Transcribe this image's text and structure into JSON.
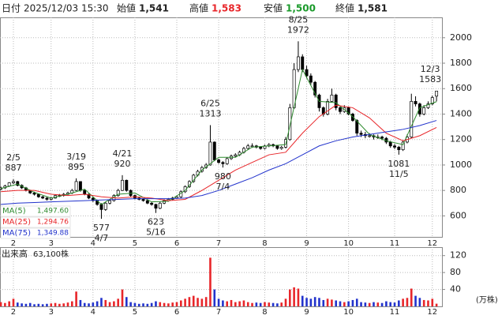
{
  "header": {
    "date_label": "日付",
    "datetime": "2025/12/03 15:30",
    "open_label": "始値",
    "open": "1,541",
    "high_label": "高値",
    "high": "1,583",
    "low_label": "安値",
    "low": "1,500",
    "close_label": "終値",
    "close": "1,581"
  },
  "chart_data": [
    {
      "type": "candlestick",
      "xlim": [
        -0.2,
        105.3
      ],
      "ylim": [
        435,
        2160
      ],
      "yticks": [
        600,
        800,
        1000,
        1200,
        1400,
        1600,
        1800,
        2000
      ],
      "xticks": [
        {
          "value": 3,
          "label": "2"
        },
        {
          "value": 12,
          "label": "3"
        },
        {
          "value": 22,
          "label": "4"
        },
        {
          "value": 32,
          "label": "5"
        },
        {
          "value": 42,
          "label": "6"
        },
        {
          "value": 52,
          "label": "7"
        },
        {
          "value": 63,
          "label": "8"
        },
        {
          "value": 73,
          "label": "9"
        },
        {
          "value": 83,
          "label": "10"
        },
        {
          "value": 94,
          "label": "11"
        },
        {
          "value": 103,
          "label": "12"
        }
      ],
      "grid": true,
      "up_color": "#ffffff",
      "down_color": "#000000",
      "ohlc": [
        [
          810,
          830,
          800,
          820
        ],
        [
          820,
          845,
          812,
          835
        ],
        [
          835,
          865,
          828,
          860
        ],
        [
          860,
          887,
          850,
          870
        ],
        [
          870,
          875,
          832,
          840
        ],
        [
          840,
          848,
          812,
          820
        ],
        [
          820,
          828,
          792,
          800
        ],
        [
          800,
          805,
          772,
          780
        ],
        [
          780,
          790,
          760,
          770
        ],
        [
          770,
          775,
          742,
          750
        ],
        [
          750,
          758,
          732,
          740
        ],
        [
          740,
          748,
          720,
          730
        ],
        [
          730,
          750,
          722,
          740
        ],
        [
          740,
          768,
          735,
          760
        ],
        [
          760,
          772,
          748,
          760
        ],
        [
          760,
          780,
          752,
          770
        ],
        [
          770,
          790,
          762,
          780
        ],
        [
          780,
          812,
          772,
          800
        ],
        [
          800,
          895,
          795,
          870
        ],
        [
          870,
          872,
          790,
          800
        ],
        [
          800,
          808,
          762,
          770
        ],
        [
          770,
          775,
          732,
          740
        ],
        [
          740,
          748,
          710,
          720
        ],
        [
          720,
          728,
          680,
          690
        ],
        [
          690,
          700,
          577,
          650
        ],
        [
          650,
          712,
          640,
          700
        ],
        [
          700,
          730,
          690,
          720
        ],
        [
          720,
          770,
          712,
          760
        ],
        [
          760,
          812,
          750,
          800
        ],
        [
          800,
          920,
          795,
          880
        ],
        [
          880,
          885,
          790,
          800
        ],
        [
          800,
          808,
          750,
          760
        ],
        [
          760,
          768,
          730,
          740
        ],
        [
          740,
          750,
          722,
          730
        ],
        [
          730,
          738,
          712,
          720
        ],
        [
          720,
          728,
          692,
          700
        ],
        [
          700,
          710,
          680,
          690
        ],
        [
          690,
          695,
          623,
          660
        ],
        [
          660,
          710,
          652,
          700
        ],
        [
          700,
          730,
          692,
          720
        ],
        [
          720,
          740,
          712,
          730
        ],
        [
          730,
          750,
          722,
          740
        ],
        [
          740,
          760,
          732,
          750
        ],
        [
          750,
          800,
          742,
          790
        ],
        [
          790,
          840,
          780,
          830
        ],
        [
          830,
          880,
          820,
          870
        ],
        [
          870,
          930,
          860,
          920
        ],
        [
          920,
          962,
          910,
          950
        ],
        [
          950,
          992,
          940,
          980
        ],
        [
          980,
          1015,
          970,
          1000
        ],
        [
          1000,
          1313,
          995,
          1180
        ],
        [
          1180,
          1185,
          1030,
          1040
        ],
        [
          1040,
          1050,
          1010,
          1020
        ],
        [
          1020,
          1030,
          980,
          1010
        ],
        [
          1010,
          1060,
          1002,
          1050
        ],
        [
          1050,
          1082,
          1040,
          1070
        ],
        [
          1070,
          1092,
          1060,
          1080
        ],
        [
          1080,
          1112,
          1070,
          1100
        ],
        [
          1100,
          1142,
          1090,
          1130
        ],
        [
          1130,
          1165,
          1120,
          1150
        ],
        [
          1150,
          1170,
          1135,
          1150
        ],
        [
          1150,
          1158,
          1130,
          1140
        ],
        [
          1140,
          1148,
          1120,
          1130
        ],
        [
          1130,
          1160,
          1122,
          1150
        ],
        [
          1150,
          1172,
          1140,
          1160
        ],
        [
          1160,
          1168,
          1140,
          1150
        ],
        [
          1150,
          1158,
          1120,
          1130
        ],
        [
          1130,
          1150,
          1120,
          1140
        ],
        [
          1140,
          1220,
          1130,
          1200
        ],
        [
          1200,
          1480,
          1190,
          1450
        ],
        [
          1450,
          1800,
          1440,
          1750
        ],
        [
          1750,
          1972,
          1730,
          1850
        ],
        [
          1850,
          1870,
          1730,
          1750
        ],
        [
          1750,
          1780,
          1680,
          1700
        ],
        [
          1700,
          1720,
          1630,
          1650
        ],
        [
          1650,
          1660,
          1530,
          1550
        ],
        [
          1550,
          1560,
          1420,
          1450
        ],
        [
          1450,
          1460,
          1380,
          1400
        ],
        [
          1400,
          1520,
          1390,
          1500
        ],
        [
          1500,
          1600,
          1490,
          1550
        ],
        [
          1550,
          1560,
          1430,
          1450
        ],
        [
          1450,
          1460,
          1400,
          1420
        ],
        [
          1420,
          1470,
          1410,
          1450
        ],
        [
          1450,
          1460,
          1390,
          1400
        ],
        [
          1400,
          1410,
          1340,
          1350
        ],
        [
          1350,
          1360,
          1230,
          1250
        ],
        [
          1250,
          1270,
          1220,
          1240
        ],
        [
          1240,
          1260,
          1210,
          1230
        ],
        [
          1230,
          1250,
          1215,
          1230
        ],
        [
          1230,
          1240,
          1200,
          1220
        ],
        [
          1220,
          1240,
          1205,
          1220
        ],
        [
          1220,
          1230,
          1195,
          1210
        ],
        [
          1210,
          1220,
          1165,
          1180
        ],
        [
          1180,
          1190,
          1135,
          1150
        ],
        [
          1150,
          1165,
          1125,
          1140
        ],
        [
          1140,
          1150,
          1081,
          1120
        ],
        [
          1120,
          1195,
          1110,
          1180
        ],
        [
          1180,
          1240,
          1170,
          1220
        ],
        [
          1220,
          1560,
          1210,
          1500
        ],
        [
          1500,
          1540,
          1460,
          1480
        ],
        [
          1480,
          1490,
          1380,
          1400
        ],
        [
          1400,
          1470,
          1390,
          1450
        ],
        [
          1450,
          1500,
          1440,
          1480
        ],
        [
          1480,
          1545,
          1470,
          1530
        ],
        [
          1541,
          1583,
          1500,
          1581
        ]
      ],
      "series": [
        {
          "name": "MA(5)",
          "color": "#2e8b2e",
          "x": [
            0,
            4,
            8,
            12,
            16,
            20,
            24,
            28,
            32,
            36,
            40,
            44,
            48,
            52,
            56,
            60,
            64,
            68,
            72,
            76,
            80,
            84,
            88,
            92,
            96,
            100,
            104
          ],
          "values": [
            815,
            850,
            785,
            740,
            770,
            810,
            690,
            770,
            780,
            710,
            715,
            800,
            960,
            1060,
            1060,
            1140,
            1150,
            1160,
            1750,
            1500,
            1490,
            1380,
            1240,
            1190,
            1160,
            1450,
            1497.6
          ],
          "value_label": "1,497.60"
        },
        {
          "name": "MA(25)",
          "color": "#e8262a",
          "x": [
            0,
            4,
            8,
            12,
            16,
            20,
            24,
            28,
            32,
            36,
            40,
            44,
            48,
            52,
            56,
            60,
            64,
            68,
            72,
            76,
            80,
            84,
            88,
            92,
            96,
            100,
            104
          ],
          "values": [
            790,
            800,
            800,
            770,
            760,
            770,
            750,
            740,
            750,
            740,
            720,
            730,
            800,
            880,
            960,
            1020,
            1080,
            1100,
            1250,
            1380,
            1470,
            1450,
            1370,
            1250,
            1190,
            1230,
            1294.76
          ],
          "value_label": "1,294.76"
        },
        {
          "name": "MA(75)",
          "color": "#2233cc",
          "x": [
            0,
            4,
            8,
            12,
            16,
            20,
            24,
            28,
            32,
            36,
            40,
            44,
            48,
            52,
            56,
            60,
            64,
            68,
            72,
            76,
            80,
            84,
            88,
            92,
            96,
            100,
            104
          ],
          "values": [
            690,
            700,
            705,
            710,
            715,
            720,
            725,
            730,
            735,
            735,
            735,
            740,
            760,
            800,
            850,
            900,
            960,
            1010,
            1080,
            1150,
            1190,
            1220,
            1240,
            1260,
            1280,
            1310,
            1349.88
          ],
          "value_label": "1,349.88"
        }
      ],
      "annotations": [
        {
          "date": "2/5",
          "price": 887
        },
        {
          "date": "3/19",
          "price": 895
        },
        {
          "date": "4/7",
          "price": 577
        },
        {
          "date": "4/21",
          "price": 920
        },
        {
          "date": "5/16",
          "price": 623
        },
        {
          "date": "6/25",
          "price": 1313
        },
        {
          "date": "7/4",
          "price": 980
        },
        {
          "date": "8/25",
          "price": 1972
        },
        {
          "date": "11/5",
          "price": 1081
        },
        {
          "date": "12/3",
          "price": 1583
        }
      ]
    },
    {
      "type": "bar",
      "title": "出来高",
      "subtitle": "63,100株",
      "unit": "(万株)",
      "xlim": [
        -0.2,
        105.3
      ],
      "ylim": [
        0,
        140
      ],
      "yticks": [
        40,
        80,
        120
      ],
      "up_color": "#e8262a",
      "down_color": "#2233cc",
      "values": [
        10,
        8,
        12,
        18,
        9,
        7,
        6,
        8,
        5,
        6,
        5,
        6,
        7,
        8,
        6,
        7,
        9,
        12,
        35,
        15,
        8,
        7,
        9,
        12,
        20,
        15,
        10,
        12,
        18,
        40,
        22,
        10,
        8,
        6,
        7,
        6,
        8,
        12,
        10,
        8,
        7,
        9,
        10,
        14,
        18,
        22,
        25,
        20,
        18,
        22,
        115,
        40,
        18,
        14,
        12,
        15,
        10,
        12,
        14,
        10,
        8,
        9,
        8,
        10,
        9,
        8,
        7,
        9,
        18,
        40,
        45,
        42,
        25,
        20,
        18,
        22,
        20,
        15,
        18,
        16,
        14,
        12,
        10,
        12,
        15,
        18,
        10,
        9,
        8,
        10,
        9,
        8,
        12,
        10,
        9,
        14,
        18,
        20,
        42,
        25,
        20,
        15,
        14,
        18,
        6.31
      ]
    }
  ]
}
